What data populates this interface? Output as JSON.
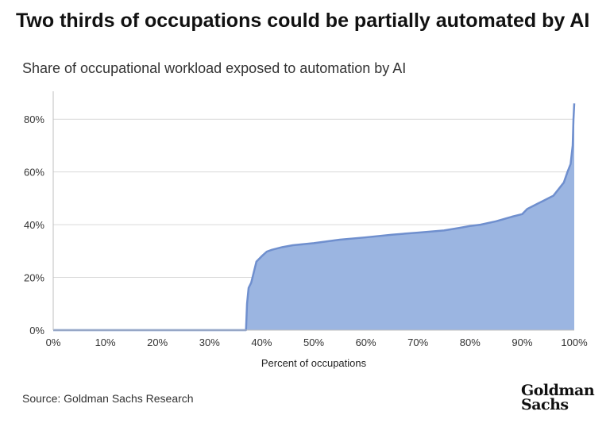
{
  "header": {
    "title": "Two thirds of occupations could be partially automated by AI",
    "subtitle": "Share of occupational workload exposed to automation by AI"
  },
  "footer": {
    "source": "Source: Goldman Sachs Research",
    "logo_line1": "Goldman",
    "logo_line2": "Sachs"
  },
  "colors": {
    "fill": "#9bb5e1",
    "line": "#6f8fce",
    "grid": "#d9d9d9",
    "axis": "#bfbfbf"
  },
  "chart_data": {
    "type": "area",
    "xlabel": "Percent of occupations",
    "ylabel": "",
    "xlim": [
      0,
      100
    ],
    "ylim": [
      0,
      90
    ],
    "grid": true,
    "x_ticks": [
      0,
      10,
      20,
      30,
      40,
      50,
      60,
      70,
      80,
      90,
      100
    ],
    "x_tick_labels": [
      "0%",
      "10%",
      "20%",
      "30%",
      "40%",
      "50%",
      "60%",
      "70%",
      "80%",
      "90%",
      "100%"
    ],
    "y_ticks": [
      0,
      20,
      40,
      60,
      80
    ],
    "y_tick_labels": [
      "0%",
      "20%",
      "40%",
      "60%",
      "80%"
    ],
    "series": [
      {
        "values": [
          [
            0,
            0
          ],
          [
            37,
            0
          ],
          [
            37.2,
            10
          ],
          [
            37.5,
            16
          ],
          [
            38,
            18
          ],
          [
            38.5,
            22
          ],
          [
            39,
            26
          ],
          [
            40,
            28
          ],
          [
            41,
            29.8
          ],
          [
            42,
            30.5
          ],
          [
            44,
            31.5
          ],
          [
            46,
            32.2
          ],
          [
            50,
            33
          ],
          [
            55,
            34.3
          ],
          [
            60,
            35.2
          ],
          [
            65,
            36.2
          ],
          [
            70,
            37
          ],
          [
            75,
            37.8
          ],
          [
            78,
            38.8
          ],
          [
            80,
            39.5
          ],
          [
            82,
            40
          ],
          [
            85,
            41.3
          ],
          [
            88,
            43
          ],
          [
            90,
            44
          ],
          [
            91,
            46
          ],
          [
            92,
            47
          ],
          [
            93,
            48
          ],
          [
            94,
            49
          ],
          [
            95,
            50
          ],
          [
            96,
            51
          ],
          [
            97,
            53.5
          ],
          [
            98,
            56
          ],
          [
            98.7,
            60
          ],
          [
            99.3,
            63
          ],
          [
            99.7,
            70
          ],
          [
            99.85,
            80
          ],
          [
            100,
            86
          ]
        ]
      }
    ]
  }
}
